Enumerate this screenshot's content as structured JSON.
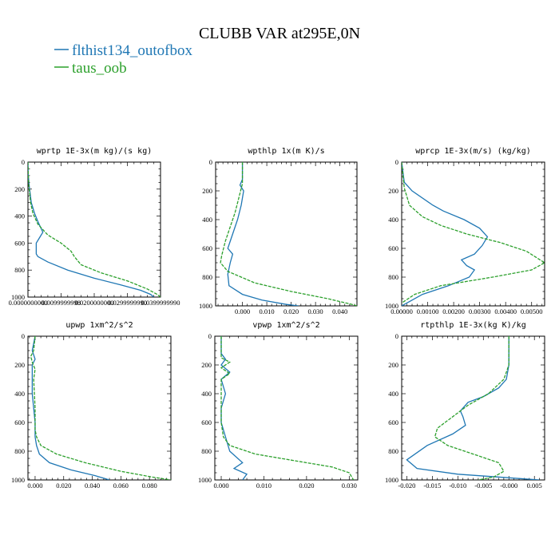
{
  "figure": {
    "title": "CLUBB VAR at295E,0N",
    "legend": [
      {
        "label": "flthist134_outofbox",
        "color": "#1f77b4"
      },
      {
        "label": "taus_oob",
        "color": "#2ca02c"
      }
    ]
  },
  "chart_data": [
    {
      "type": "line",
      "title": "wprtp  1E-3x(m kg)/(s kg)",
      "xlim": [
        0,
        0.04
      ],
      "ylim": [
        1000,
        0
      ],
      "x_ticks": [
        0,
        0.01,
        0.02,
        0.03,
        0.04
      ],
      "x_tick_labels": [
        "0.0000000000",
        "0.0099999998",
        "0.0200000000",
        "0.0299999990",
        "0.0399999990"
      ],
      "y_ticks": [
        0,
        200,
        400,
        600,
        800,
        1000
      ],
      "y_tick_labels": [
        "0",
        "200",
        "400",
        "600",
        "800",
        "1000"
      ],
      "series": [
        {
          "name": "flthist134_outofbox",
          "color": "#1f77b4",
          "dash": "solid",
          "x": [
            0.0,
            0.0001,
            0.0004,
            0.001,
            0.002,
            0.003,
            0.0045,
            0.0035,
            0.0025,
            0.0025,
            0.003,
            0.006,
            0.012,
            0.02,
            0.028,
            0.034,
            0.037,
            0.038
          ],
          "y": [
            0,
            100,
            180,
            300,
            380,
            440,
            520,
            560,
            600,
            680,
            700,
            740,
            800,
            860,
            910,
            950,
            980,
            1000
          ]
        },
        {
          "name": "taus_oob",
          "color": "#2ca02c",
          "dash": "dash",
          "x": [
            0.0,
            0.0001,
            0.0003,
            0.0008,
            0.0015,
            0.003,
            0.006,
            0.01,
            0.013,
            0.014,
            0.016,
            0.022,
            0.03,
            0.036,
            0.039,
            0.04
          ],
          "y": [
            0,
            100,
            180,
            300,
            380,
            460,
            540,
            600,
            660,
            700,
            760,
            820,
            880,
            940,
            980,
            1000
          ]
        }
      ]
    },
    {
      "type": "line",
      "title": "wpthlp  1x(m K)/s",
      "xlim": [
        -0.011,
        0.047
      ],
      "ylim": [
        1000,
        0
      ],
      "x_ticks": [
        0,
        0.01,
        0.02,
        0.03,
        0.04
      ],
      "x_tick_labels": [
        "0.000",
        "0.010",
        "0.020",
        "0.030",
        "0.040"
      ],
      "y_ticks": [
        0,
        200,
        400,
        600,
        800,
        1000
      ],
      "y_tick_labels": [
        "0",
        "200",
        "400",
        "600",
        "800",
        "1000"
      ],
      "series": [
        {
          "name": "flthist134_outofbox",
          "color": "#1f77b4",
          "dash": "solid",
          "x": [
            0.0,
            0.0,
            -0.001,
            0.0005,
            -0.0005,
            -0.002,
            -0.004,
            -0.006,
            -0.004,
            -0.005,
            -0.006,
            -0.0055,
            0.0,
            0.008,
            0.018,
            0.023
          ],
          "y": [
            0,
            120,
            160,
            200,
            300,
            400,
            500,
            600,
            640,
            700,
            780,
            860,
            920,
            960,
            990,
            1000
          ]
        },
        {
          "name": "taus_oob",
          "color": "#2ca02c",
          "dash": "dash",
          "x": [
            0.0,
            0.0,
            -0.0015,
            -0.003,
            -0.005,
            -0.007,
            -0.0085,
            -0.009,
            -0.006,
            0.005,
            0.02,
            0.035,
            0.045,
            0.047
          ],
          "y": [
            0,
            150,
            250,
            350,
            450,
            550,
            650,
            700,
            760,
            840,
            900,
            950,
            990,
            1000
          ]
        }
      ]
    },
    {
      "type": "line",
      "title": "wprcp  1E-3x(m/s) (kg/kg)",
      "xlim": [
        0,
        0.0055
      ],
      "ylim": [
        1000,
        0
      ],
      "x_ticks": [
        0,
        0.001,
        0.002,
        0.003,
        0.004,
        0.005
      ],
      "x_tick_labels": [
        "0.00000",
        "0.00100",
        "0.00200",
        "0.00300",
        "0.00400",
        "0.00500"
      ],
      "y_ticks": [
        0,
        200,
        400,
        600,
        800,
        1000
      ],
      "y_tick_labels": [
        "0",
        "200",
        "400",
        "600",
        "800",
        "1000"
      ],
      "series": [
        {
          "name": "flthist134_outofbox",
          "color": "#1f77b4",
          "dash": "solid",
          "x": [
            0.0,
            0.0001,
            0.0004,
            0.0012,
            0.0016,
            0.0024,
            0.003,
            0.0033,
            0.0031,
            0.0028,
            0.0023,
            0.0025,
            0.0028,
            0.0026,
            0.0018,
            0.0008,
            0.0002,
            0.0
          ],
          "y": [
            0,
            140,
            200,
            300,
            340,
            400,
            460,
            520,
            580,
            640,
            680,
            720,
            750,
            800,
            860,
            920,
            980,
            1000
          ]
        },
        {
          "name": "taus_oob",
          "color": "#2ca02c",
          "dash": "dash",
          "x": [
            0.0,
            0.0001,
            0.0003,
            0.0008,
            0.0015,
            0.0025,
            0.0038,
            0.0048,
            0.0055,
            0.005,
            0.0035,
            0.0015,
            0.0005,
            0.0
          ],
          "y": [
            0,
            180,
            300,
            380,
            440,
            500,
            560,
            620,
            700,
            750,
            800,
            860,
            920,
            980
          ]
        }
      ]
    },
    {
      "type": "line",
      "title": "upwp  1xm^2/s^2",
      "xlim": [
        -0.005,
        0.095
      ],
      "ylim": [
        1000,
        0
      ],
      "x_ticks": [
        0,
        0.02,
        0.04,
        0.06,
        0.08
      ],
      "x_tick_labels": [
        "0.000",
        "0.020",
        "0.040",
        "0.060",
        "0.080"
      ],
      "y_ticks": [
        0,
        200,
        400,
        600,
        800,
        1000
      ],
      "y_tick_labels": [
        "0",
        "200",
        "400",
        "600",
        "800",
        "1000"
      ],
      "series": [
        {
          "name": "flthist134_outofbox",
          "color": "#1f77b4",
          "dash": "solid",
          "x": [
            0.0,
            -0.002,
            0.0,
            -0.002,
            -0.002,
            -0.002,
            -0.001,
            0.0,
            0.0,
            0.001,
            0.003,
            0.01,
            0.025,
            0.042,
            0.052
          ],
          "y": [
            0,
            100,
            160,
            200,
            300,
            400,
            500,
            600,
            700,
            760,
            820,
            880,
            930,
            970,
            1000
          ]
        },
        {
          "name": "taus_oob",
          "color": "#2ca02c",
          "dash": "dash",
          "x": [
            0.0,
            -0.001,
            -0.003,
            -0.002,
            0.0,
            -0.001,
            0.0,
            0.0,
            0.001,
            0.004,
            0.015,
            0.035,
            0.06,
            0.082,
            0.095
          ],
          "y": [
            0,
            100,
            140,
            180,
            230,
            300,
            500,
            650,
            700,
            760,
            820,
            880,
            940,
            980,
            1000
          ]
        }
      ]
    },
    {
      "type": "line",
      "title": "vpwp  1xm^2/s^2",
      "xlim": [
        -0.0015,
        0.032
      ],
      "ylim": [
        1000,
        0
      ],
      "x_ticks": [
        0,
        0.01,
        0.02,
        0.03
      ],
      "x_tick_labels": [
        "0.000",
        "0.010",
        "0.020",
        "0.030"
      ],
      "y_ticks": [
        0,
        200,
        400,
        600,
        800,
        1000
      ],
      "y_tick_labels": [
        "0",
        "200",
        "400",
        "600",
        "800",
        "1000"
      ],
      "series": [
        {
          "name": "flthist134_outofbox",
          "color": "#1f77b4",
          "dash": "solid",
          "x": [
            0.0,
            0.0,
            0.001,
            0.0,
            0.002,
            0.0,
            0.001,
            0.0,
            0.0,
            0.001,
            0.002,
            0.005,
            0.003,
            0.006,
            0.005
          ],
          "y": [
            0,
            120,
            160,
            200,
            250,
            300,
            400,
            500,
            600,
            700,
            800,
            880,
            920,
            960,
            1000
          ]
        },
        {
          "name": "taus_oob",
          "color": "#2ca02c",
          "dash": "dash",
          "x": [
            0.0,
            0.0,
            0.002,
            0.0,
            0.002,
            0.0,
            0.0,
            0.0005,
            0.002,
            0.008,
            0.018,
            0.026,
            0.03,
            0.031
          ],
          "y": [
            0,
            150,
            180,
            220,
            260,
            300,
            600,
            700,
            760,
            820,
            870,
            910,
            950,
            1000
          ]
        }
      ]
    },
    {
      "type": "line",
      "title": "rtpthlp  1E-3x(kg K)/kg",
      "xlim": [
        -0.021,
        0.007
      ],
      "ylim": [
        1000,
        0
      ],
      "x_ticks": [
        -0.02,
        -0.015,
        -0.01,
        -0.005,
        0,
        0.005
      ],
      "x_tick_labels": [
        "-0.020",
        "-0.015",
        "-0.010",
        "-0.005",
        "-0.000",
        "0.005"
      ],
      "y_ticks": [
        0,
        200,
        400,
        600,
        800,
        1000
      ],
      "y_tick_labels": [
        "0",
        "200",
        "400",
        "600",
        "800",
        "1000"
      ],
      "series": [
        {
          "name": "flthist134_outofbox",
          "color": "#1f77b4",
          "dash": "solid",
          "x": [
            0.0,
            0.0,
            -0.0005,
            -0.002,
            -0.005,
            -0.008,
            -0.0095,
            -0.009,
            -0.0085,
            -0.011,
            -0.016,
            -0.02,
            -0.018,
            -0.01,
            0.0,
            0.006
          ],
          "y": [
            0,
            200,
            300,
            360,
            420,
            460,
            520,
            560,
            620,
            680,
            760,
            860,
            920,
            960,
            985,
            1000
          ]
        },
        {
          "name": "taus_oob",
          "color": "#2ca02c",
          "dash": "dash",
          "x": [
            0.0,
            0.0,
            -0.001,
            -0.004,
            -0.008,
            -0.011,
            -0.014,
            -0.0145,
            -0.012,
            -0.007,
            -0.002,
            -0.001,
            -0.003,
            -0.006
          ],
          "y": [
            0,
            200,
            300,
            400,
            480,
            560,
            640,
            700,
            760,
            820,
            880,
            940,
            980,
            1000
          ]
        }
      ]
    }
  ]
}
